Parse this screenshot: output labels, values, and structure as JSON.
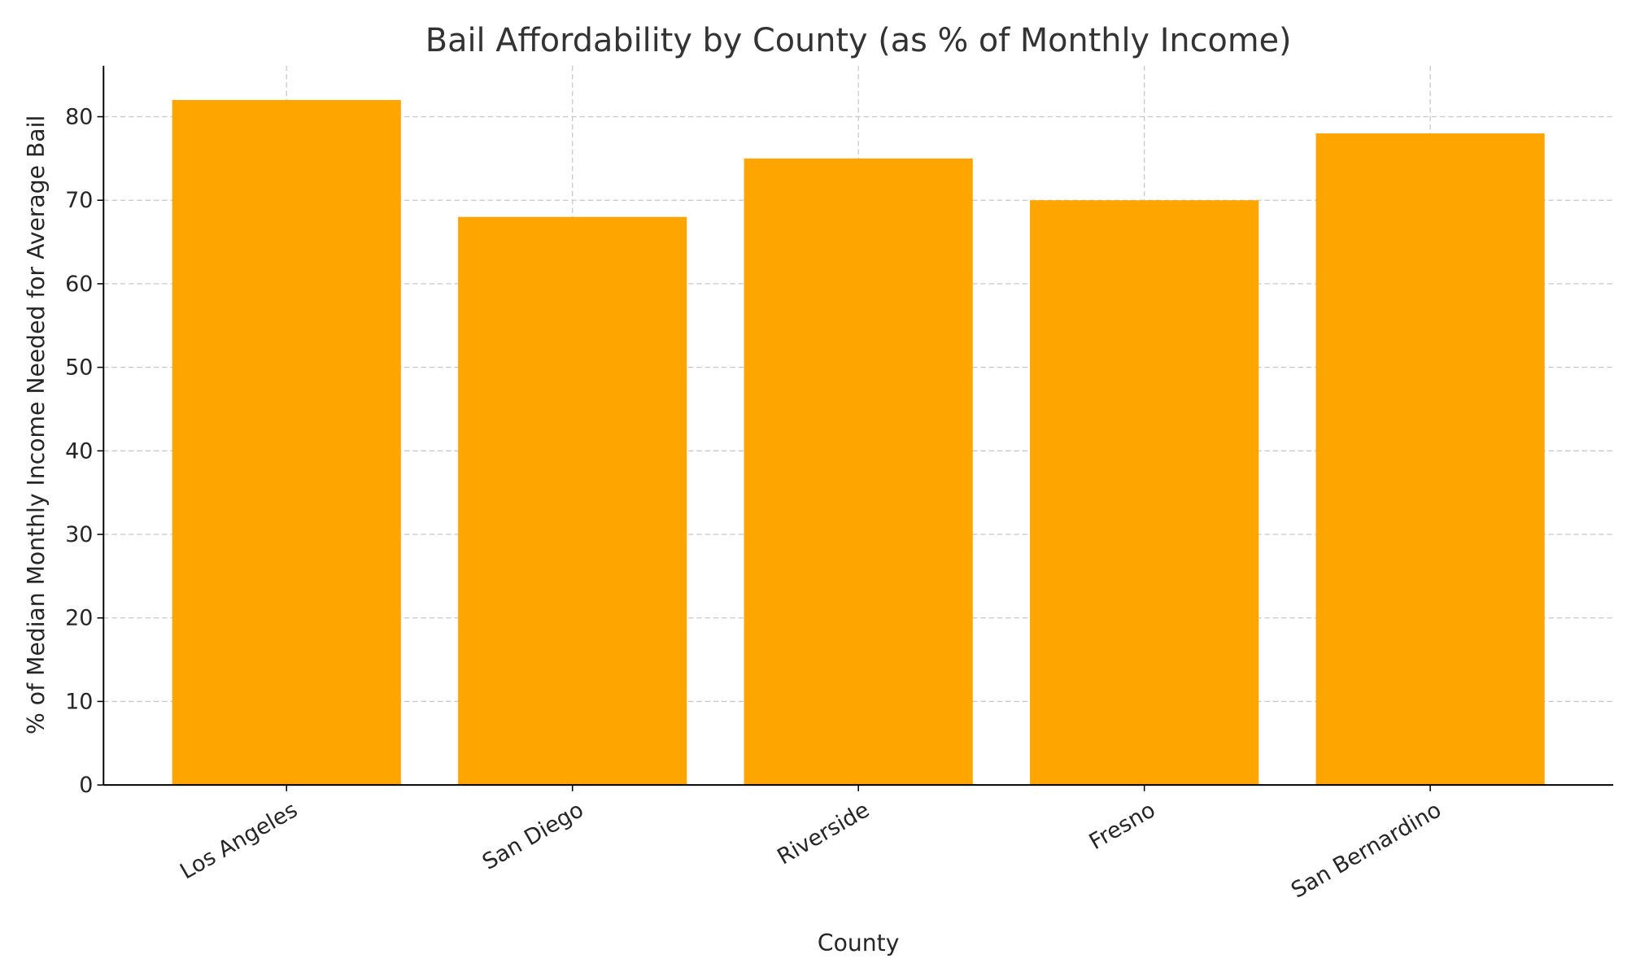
{
  "chart_data": {
    "type": "bar",
    "title": "Bail Affordability by County (as % of Monthly Income)",
    "xlabel": "County",
    "ylabel": "% of Median Monthly Income Needed for Average Bail",
    "categories": [
      "Los Angeles",
      "San Diego",
      "Riverside",
      "Fresno",
      "San Bernardino"
    ],
    "values": [
      82,
      68,
      75,
      70,
      78
    ],
    "ylim": [
      0,
      86.1
    ],
    "yticks": [
      0,
      10,
      20,
      30,
      40,
      50,
      60,
      70,
      80
    ],
    "grid": true,
    "bar_color": "#FFA500",
    "xtick_rotation": 30
  }
}
